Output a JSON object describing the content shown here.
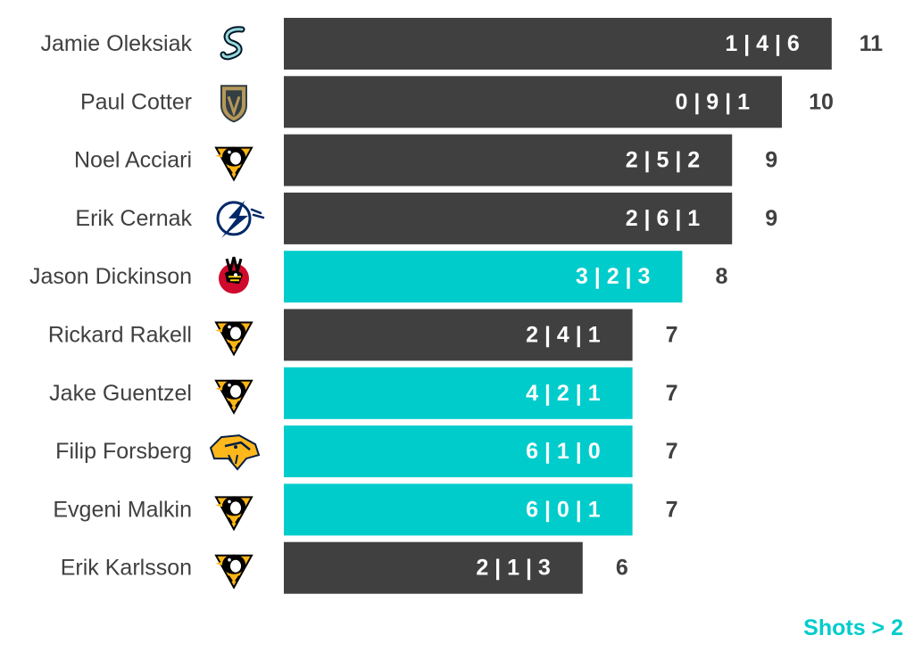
{
  "chart_data": {
    "type": "bar",
    "orientation": "horizontal",
    "categories": [
      "Jamie Oleksiak",
      "Paul Cotter",
      "Noel Acciari",
      "Erik Cernak",
      "Jason Dickinson",
      "Rickard Rakell",
      "Jake Guentzel",
      "Filip Forsberg",
      "Evgeni Malkin",
      "Erik Karlsson"
    ],
    "values": [
      11,
      10,
      9,
      9,
      8,
      7,
      7,
      7,
      7,
      6
    ],
    "breakdown_labels": [
      "1 | 4 | 6",
      "0 | 9 | 1",
      "2 | 5 | 2",
      "2 | 6 | 1",
      "3 | 2 | 3",
      "2 | 4 | 1",
      "4 | 2 | 1",
      "6 | 1 | 0",
      "6 | 0 | 1",
      "2 | 1 | 3"
    ],
    "highlighted": [
      false,
      false,
      false,
      false,
      true,
      false,
      true,
      true,
      true,
      false
    ],
    "team_logos": [
      "kraken-logo",
      "golden-knights-logo",
      "penguins-logo",
      "lightning-logo",
      "blackhawks-logo",
      "penguins-logo",
      "penguins-logo",
      "predators-logo",
      "penguins-logo",
      "penguins-logo"
    ],
    "xlim": [
      0,
      11
    ],
    "grid": false,
    "legend_note": "Shots > 2",
    "colors": {
      "default": "#404040",
      "highlight": "#00cccc",
      "label_text": "#404040",
      "bar_text": "#ffffff"
    }
  }
}
